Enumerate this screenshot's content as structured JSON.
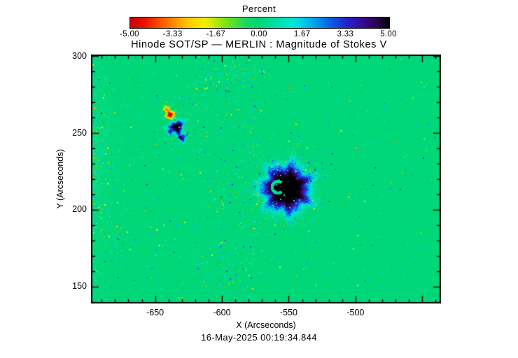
{
  "colorbar": {
    "title": "Percent",
    "tick_labels": [
      "-5.00",
      "-3.33",
      "-1.67",
      "0.00",
      "1.67",
      "3.33",
      "5.00"
    ],
    "stops": [
      [
        0.0,
        "#c80000"
      ],
      [
        0.06,
        "#f01400"
      ],
      [
        0.14,
        "#ff6e00"
      ],
      [
        0.22,
        "#ffc800"
      ],
      [
        0.29,
        "#f0f000"
      ],
      [
        0.37,
        "#78e414"
      ],
      [
        0.45,
        "#14d964"
      ],
      [
        0.5,
        "#00d778"
      ],
      [
        0.56,
        "#00dfa5"
      ],
      [
        0.63,
        "#00e6dc"
      ],
      [
        0.7,
        "#00aff0"
      ],
      [
        0.77,
        "#0d62e8"
      ],
      [
        0.84,
        "#2222cc"
      ],
      [
        0.9,
        "#3a0a91"
      ],
      [
        0.96,
        "#260348"
      ],
      [
        1.0,
        "#000000"
      ]
    ]
  },
  "plot": {
    "title": "Hinode SOT/SP — MERLIN : Magnitude of Stokes V",
    "xlabel": "X (Arcseconds)",
    "ylabel": "Y (Arcseconds)",
    "x_ticks": [
      -650,
      -600,
      -550,
      -500
    ],
    "y_ticks": [
      150,
      200,
      250,
      300
    ],
    "timestamp": "16-May-2025 00:19:34.844"
  },
  "chart_data": {
    "type": "heatmap",
    "title": "Hinode SOT/SP — MERLIN : Magnitude of Stokes V",
    "colorbar_label": "Percent",
    "colorbar_ticks": [
      -5.0,
      -3.33,
      -1.67,
      0.0,
      1.67,
      3.33,
      5.0
    ],
    "value_range": [
      -5,
      5
    ],
    "xlabel": "X (Arcseconds)",
    "ylabel": "Y (Arcseconds)",
    "xlim": [
      -698,
      -436
    ],
    "ylim": [
      139,
      301
    ],
    "x_tick_values": [
      -650,
      -600,
      -550,
      -500
    ],
    "y_tick_values": [
      150,
      200,
      250,
      300
    ],
    "background_value": 0.0,
    "timestamp": "16-May-2025 00:19:34.844",
    "features": [
      {
        "name": "sunspot-main",
        "type": "positive-core",
        "x": -552,
        "y": 214,
        "peak": 5.0,
        "radius": 17,
        "note": "large circular strong positive Stokes V region; black saturated core, blue/purple fringe, small green crescent inside core"
      },
      {
        "name": "pore-secondary",
        "type": "positive-core",
        "x": -634,
        "y": 254,
        "peak": 4.8,
        "radius": 4.5,
        "note": "small dark-blue pore with near-black center"
      },
      {
        "name": "pore-lobe",
        "type": "positive-core",
        "x": -630,
        "y": 247,
        "peak": 3.4,
        "radius": 2.6
      },
      {
        "name": "pore-lobe-2",
        "type": "positive-core",
        "x": -639,
        "y": 251,
        "peak": 3.0,
        "radius": 2.0
      },
      {
        "name": "negative-knot",
        "type": "negative-core",
        "x": -639,
        "y": 262,
        "peak": -4.6,
        "radius": 3.0,
        "note": "red/orange/yellow negative polarity knot adjacent to secondary pore"
      },
      {
        "name": "negative-knot-2",
        "type": "negative-core",
        "x": -642,
        "y": 266,
        "peak": -2.6,
        "radius": 2.2
      }
    ],
    "noise": "sparse speckle of weak positive (cyan/blue) and negative (yellow/orange) points; densest along left edge, in a vertical band near x=-595, and in a ring around the main sunspot"
  }
}
